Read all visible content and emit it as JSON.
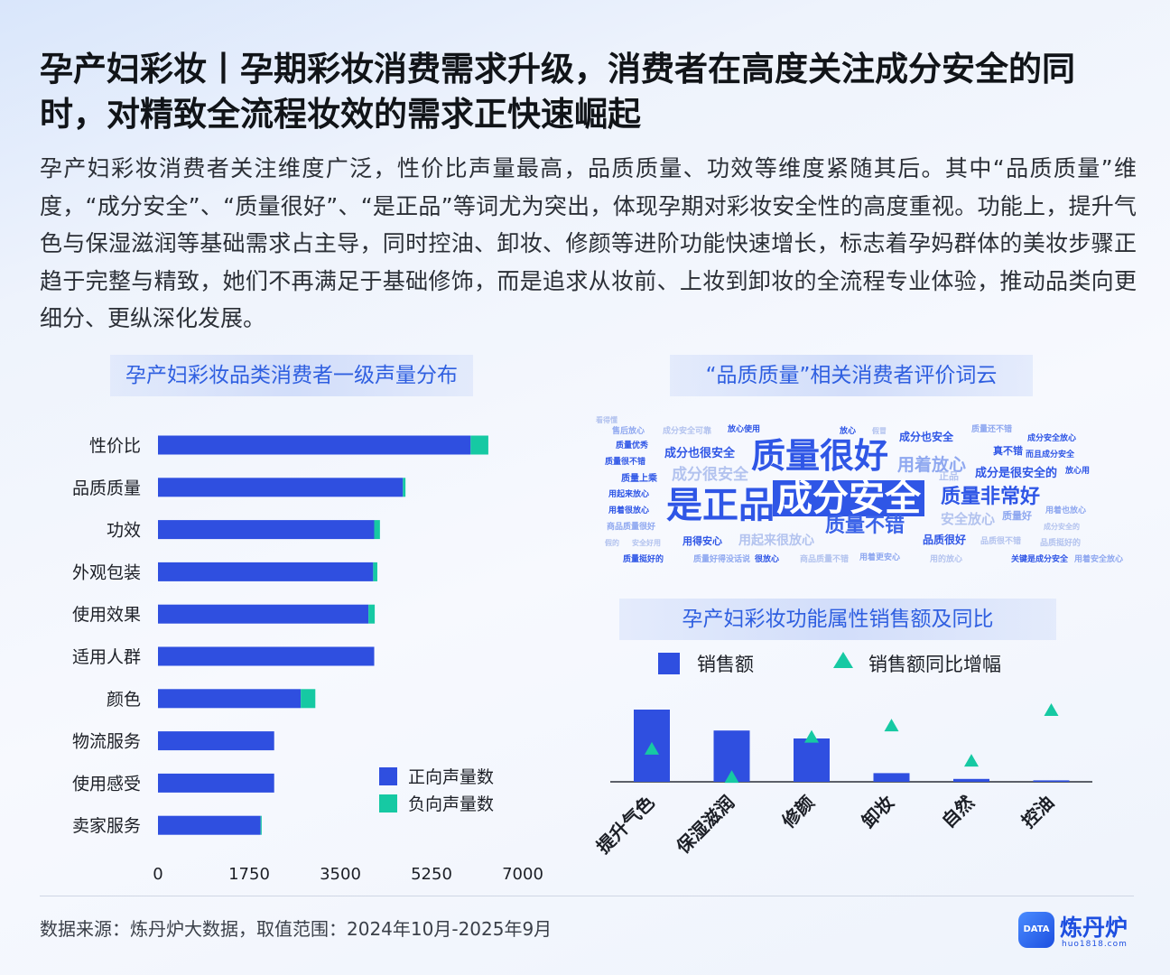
{
  "header": {
    "title": "孕产妇彩妆丨孕期彩妆消费需求升级，消费者在高度关注成分安全的同时，对精致全流程妆效的需求正快速崛起",
    "description": "孕产妇彩妆消费者关注维度广泛，性价比声量最高，品质质量、功效等维度紧随其后。其中“品质质量”维度，“成分安全”、“质量很好”、“是正品”等词尤为突出，体现孕期对彩妆安全性的高度重视。功能上，提升气色与保湿滋润等基础需求占主导，同时控油、卸妆、修颜等进阶功能快速增长，标志着孕妈群体的美妆步骤正趋于完整与精致，她们不再满足于基础修饰，而是追求从妆前、上妆到卸妆的全流程专业体验，推动品类向更细分、更纵深化发展。"
  },
  "bar_panel": {
    "title": "孕产妇彩妆品类消费者一级声量分布"
  },
  "cloud_panel": {
    "title": "“品质质量”相关消费者评价词云"
  },
  "combo_panel": {
    "title": "孕产妇彩妆功能属性销售额及同比"
  },
  "wordcloud": [
    {
      "text": "质量很好",
      "size": 38,
      "color": "#2f56e6",
      "hl": false
    },
    {
      "text": "成分安全",
      "size": 40,
      "color": "#ffffff",
      "hl": true
    },
    {
      "text": "是正品",
      "size": 40,
      "color": "#2f56e6",
      "hl": false
    },
    {
      "text": "质量非常好",
      "size": 22,
      "color": "#2f56e6",
      "hl": false
    },
    {
      "text": "质量不错",
      "size": 22,
      "color": "#3b63e8",
      "hl": false
    },
    {
      "text": "用着放心",
      "size": 19,
      "color": "#8fa8f0",
      "hl": false
    },
    {
      "text": "成分很安全",
      "size": 17,
      "color": "#b3c3ef",
      "hl": false
    },
    {
      "text": "成分也很安全",
      "size": 13,
      "color": "#2f56e6",
      "hl": false
    },
    {
      "text": "成分是很安全的",
      "size": 13,
      "color": "#2f56e6",
      "hl": false
    },
    {
      "text": "成分也安全",
      "size": 12,
      "color": "#2f56e6",
      "hl": false
    },
    {
      "text": "安全放心",
      "size": 15,
      "color": "#b3c3ef",
      "hl": false
    },
    {
      "text": "用起来很放心",
      "size": 14,
      "color": "#b3c3ef",
      "hl": false
    },
    {
      "text": "品质很好",
      "size": 12,
      "color": "#2f56e6",
      "hl": false
    },
    {
      "text": "用得安心",
      "size": 11,
      "color": "#2f56e6",
      "hl": false
    },
    {
      "text": "质量好",
      "size": 11,
      "color": "#8fa8f0",
      "hl": false
    },
    {
      "text": "真不错",
      "size": 11,
      "color": "#2f56e6",
      "hl": false
    },
    {
      "text": "正品",
      "size": 11,
      "color": "#b3c3ef",
      "hl": false
    },
    {
      "text": "放心",
      "size": 9,
      "color": "#2f56e6",
      "hl": false
    },
    {
      "text": "假冒",
      "size": 8,
      "color": "#b3c3ef",
      "hl": false
    },
    {
      "text": "售后放心",
      "size": 9,
      "color": "#8fa8f0",
      "hl": false
    },
    {
      "text": "成分安全可靠",
      "size": 9,
      "color": "#b3c3ef",
      "hl": false
    },
    {
      "text": "放心使用",
      "size": 9,
      "color": "#2f56e6",
      "hl": false
    },
    {
      "text": "质量还不错",
      "size": 9,
      "color": "#8fa8f0",
      "hl": false
    },
    {
      "text": "成分安全放心",
      "size": 9,
      "color": "#2f56e6",
      "hl": false
    },
    {
      "text": "而且成分安全",
      "size": 9,
      "color": "#2f56e6",
      "hl": false
    },
    {
      "text": "质量优秀",
      "size": 9,
      "color": "#2f56e6",
      "hl": false
    },
    {
      "text": "质量很不错",
      "size": 9,
      "color": "#2f56e6",
      "hl": false
    },
    {
      "text": "质量上乘",
      "size": 10,
      "color": "#2f56e6",
      "hl": false
    },
    {
      "text": "用起来放心",
      "size": 9,
      "color": "#2f56e6",
      "hl": false
    },
    {
      "text": "用着很放心",
      "size": 9,
      "color": "#2f56e6",
      "hl": false
    },
    {
      "text": "商品质量很好",
      "size": 9,
      "color": "#8fa8f0",
      "hl": false
    },
    {
      "text": "假的",
      "size": 8,
      "color": "#b3c3ef",
      "hl": false
    },
    {
      "text": "安全好用",
      "size": 8,
      "color": "#b3c3ef",
      "hl": false
    },
    {
      "text": "放心用",
      "size": 9,
      "color": "#2f56e6",
      "hl": false
    },
    {
      "text": "品质很不错",
      "size": 9,
      "color": "#b3c3ef",
      "hl": false
    },
    {
      "text": "用着也放心",
      "size": 9,
      "color": "#8fa8f0",
      "hl": false
    },
    {
      "text": "成分安全的",
      "size": 8,
      "color": "#b3c3ef",
      "hl": false
    },
    {
      "text": "品质挺好的",
      "size": 9,
      "color": "#b3c3ef",
      "hl": false
    },
    {
      "text": "质量挺好的",
      "size": 9,
      "color": "#2f56e6",
      "hl": false
    },
    {
      "text": "质量好得没话说",
      "size": 9,
      "color": "#8fa8f0",
      "hl": false
    },
    {
      "text": "很放心",
      "size": 9,
      "color": "#2f56e6",
      "hl": false
    },
    {
      "text": "商品质量不错",
      "size": 9,
      "color": "#b3c3ef",
      "hl": false
    },
    {
      "text": "用着更安心",
      "size": 9,
      "color": "#8fa8f0",
      "hl": false
    },
    {
      "text": "用的放心",
      "size": 9,
      "color": "#b3c3ef",
      "hl": false
    },
    {
      "text": "关键是成分安全",
      "size": 9,
      "color": "#2f56e6",
      "hl": false
    },
    {
      "text": "用着安全放心",
      "size": 9,
      "color": "#8fa8f0",
      "hl": false
    },
    {
      "text": "看得懂",
      "size": 8,
      "color": "#b3c3ef",
      "hl": false
    }
  ],
  "chart_data": [
    {
      "type": "bar",
      "orientation": "horizontal",
      "stacked": true,
      "title": "孕产妇彩妆品类消费者一级声量分布",
      "categories": [
        "性价比",
        "品质质量",
        "功效",
        "外观包装",
        "使用效果",
        "适用人群",
        "颜色",
        "物流服务",
        "使用感受",
        "卖家服务"
      ],
      "series": [
        {
          "name": "正向声量数",
          "color": "#2f4fe0",
          "values": [
            6000,
            4700,
            4150,
            4130,
            4040,
            4150,
            2740,
            2230,
            2230,
            1970
          ]
        },
        {
          "name": "负向声量数",
          "color": "#16c9a3",
          "values": [
            340,
            50,
            110,
            80,
            120,
            0,
            280,
            0,
            0,
            20
          ]
        }
      ],
      "xlim": [
        0,
        7000
      ],
      "xticks": [
        "0",
        "1750",
        "3500",
        "5250",
        "7000"
      ],
      "grid": false,
      "legend_position": "bottom-right"
    },
    {
      "type": "bar",
      "title": "孕产妇彩妆功能属性销售额及同比",
      "categories": [
        "提升气色",
        "保湿滋润",
        "修颜",
        "卸妆",
        "自然",
        "控油"
      ],
      "series": [
        {
          "name": "销售额",
          "color": "#2f4fe0",
          "values": [
            100,
            71,
            60,
            12,
            4,
            2
          ]
        },
        {
          "name": "销售额同比增幅",
          "color": "#16c9a3",
          "marker": "triangle",
          "values": [
            45,
            5,
            62,
            78,
            28,
            100
          ]
        }
      ],
      "legend_position": "top",
      "grid": false
    }
  ],
  "footer": {
    "source": "数据来源：炼丹炉大数据，取值范围：2024年10月-2025年9月",
    "brand": "炼丹炉",
    "brand_badge": "DATA",
    "brand_url": "huo1818.com"
  }
}
